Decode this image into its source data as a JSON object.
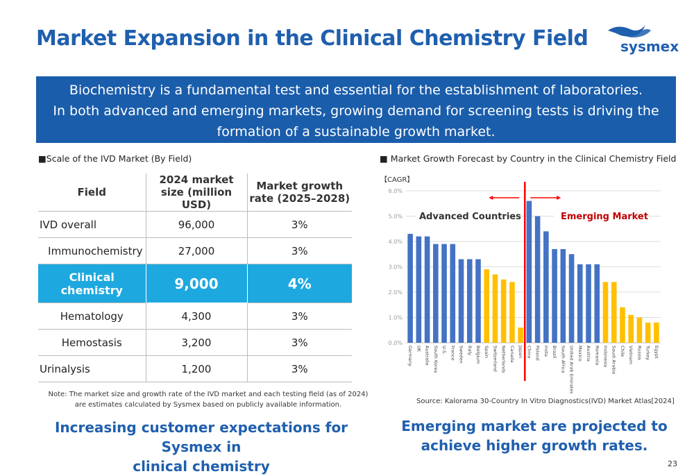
{
  "title": "Market Expansion in the Clinical Chemistry Field",
  "logo": {
    "text": "sysmex",
    "color": "#1f5fae"
  },
  "banner": {
    "line1": "Biochemistry is a fundamental test and essential for the establishment of laboratories.",
    "line2": "In both advanced and emerging markets, growing demand for screening tests is driving the",
    "line3": "formation of a sustainable growth market."
  },
  "left": {
    "label": "■Scale of the IVD Market (By Field)",
    "table": {
      "headers": [
        "Field",
        "2024 market size (million USD)",
        "Market growth rate (2025–2028)"
      ],
      "rows": [
        {
          "field": "IVD overall",
          "size": "96,000",
          "rate": "3%"
        },
        {
          "field": "Immunochemistry",
          "size": "27,000",
          "rate": "3%"
        },
        {
          "field": "Clinical chemistry",
          "size": "9,000",
          "rate": "4%",
          "highlight": true
        },
        {
          "field": "Hematology",
          "size": "4,300",
          "rate": "3%"
        },
        {
          "field": "Hemostasis",
          "size": "3,200",
          "rate": "3%"
        },
        {
          "field": "Urinalysis",
          "size": "1,200",
          "rate": "3%"
        }
      ]
    },
    "note1": "Note: The market size and growth rate of the IVD market and each testing field (as of 2024)",
    "note2": "are estimates calculated by Sysmex based on publicly available information.",
    "conclusion1": "Increasing customer expectations for Sysmex in",
    "conclusion2": "clinical chemistry"
  },
  "right": {
    "label": "■ Market Growth Forecast by Country in the Clinical Chemistry Field",
    "source": "Source: Kalorama 30-Country In Vitro Diagnostics(IVD) Market Atlas[2024]",
    "conclusion1": "Emerging market are projected to",
    "conclusion2": "achieve higher growth rates."
  },
  "page_number": "23",
  "chart_data": {
    "type": "bar",
    "ylabel": "【CAGR】",
    "ylim": [
      0,
      6
    ],
    "yticks": [
      "0.0%",
      "1.0%",
      "2.0%",
      "3.0%",
      "4.0%",
      "5.0%",
      "6.0%"
    ],
    "grid": true,
    "annotations": {
      "advanced": "Advanced Countries",
      "emerging": "Emerging Market"
    },
    "colors": {
      "blue": "#4472c4",
      "yellow": "#ffc000",
      "divider": "#ff0000",
      "emerging_text": "#c00000"
    },
    "categories": [
      "Germany",
      "UK",
      "Australia",
      "South Korea",
      "U.S.",
      "France",
      "Sweden",
      "Italy",
      "Belgium",
      "Spain",
      "Switzerland",
      "Netherlands",
      "Canada",
      "Japan",
      "China",
      "Poland",
      "India",
      "Brazil",
      "South Africa",
      "United Arab Emirates",
      "Mexico",
      "Austria",
      "Romania",
      "Indonesia",
      "Saudi Arabia",
      "Chile",
      "Vietnam",
      "Russia",
      "Turkey",
      "Egypt"
    ],
    "values": [
      4.3,
      4.2,
      4.2,
      3.9,
      3.9,
      3.9,
      3.3,
      3.3,
      3.3,
      2.9,
      2.7,
      2.5,
      2.4,
      0.6,
      5.6,
      5.0,
      4.4,
      3.7,
      3.7,
      3.5,
      3.1,
      3.1,
      3.1,
      2.4,
      2.4,
      1.4,
      1.1,
      1.0,
      0.8,
      0.8
    ],
    "bar_colors": [
      "blue",
      "blue",
      "blue",
      "blue",
      "blue",
      "blue",
      "blue",
      "blue",
      "blue",
      "yellow",
      "yellow",
      "yellow",
      "yellow",
      "yellow",
      "blue",
      "blue",
      "blue",
      "blue",
      "blue",
      "blue",
      "blue",
      "blue",
      "blue",
      "yellow",
      "yellow",
      "yellow",
      "yellow",
      "yellow",
      "yellow",
      "yellow"
    ],
    "groups": {
      "advanced": 14,
      "emerging": 16
    }
  }
}
